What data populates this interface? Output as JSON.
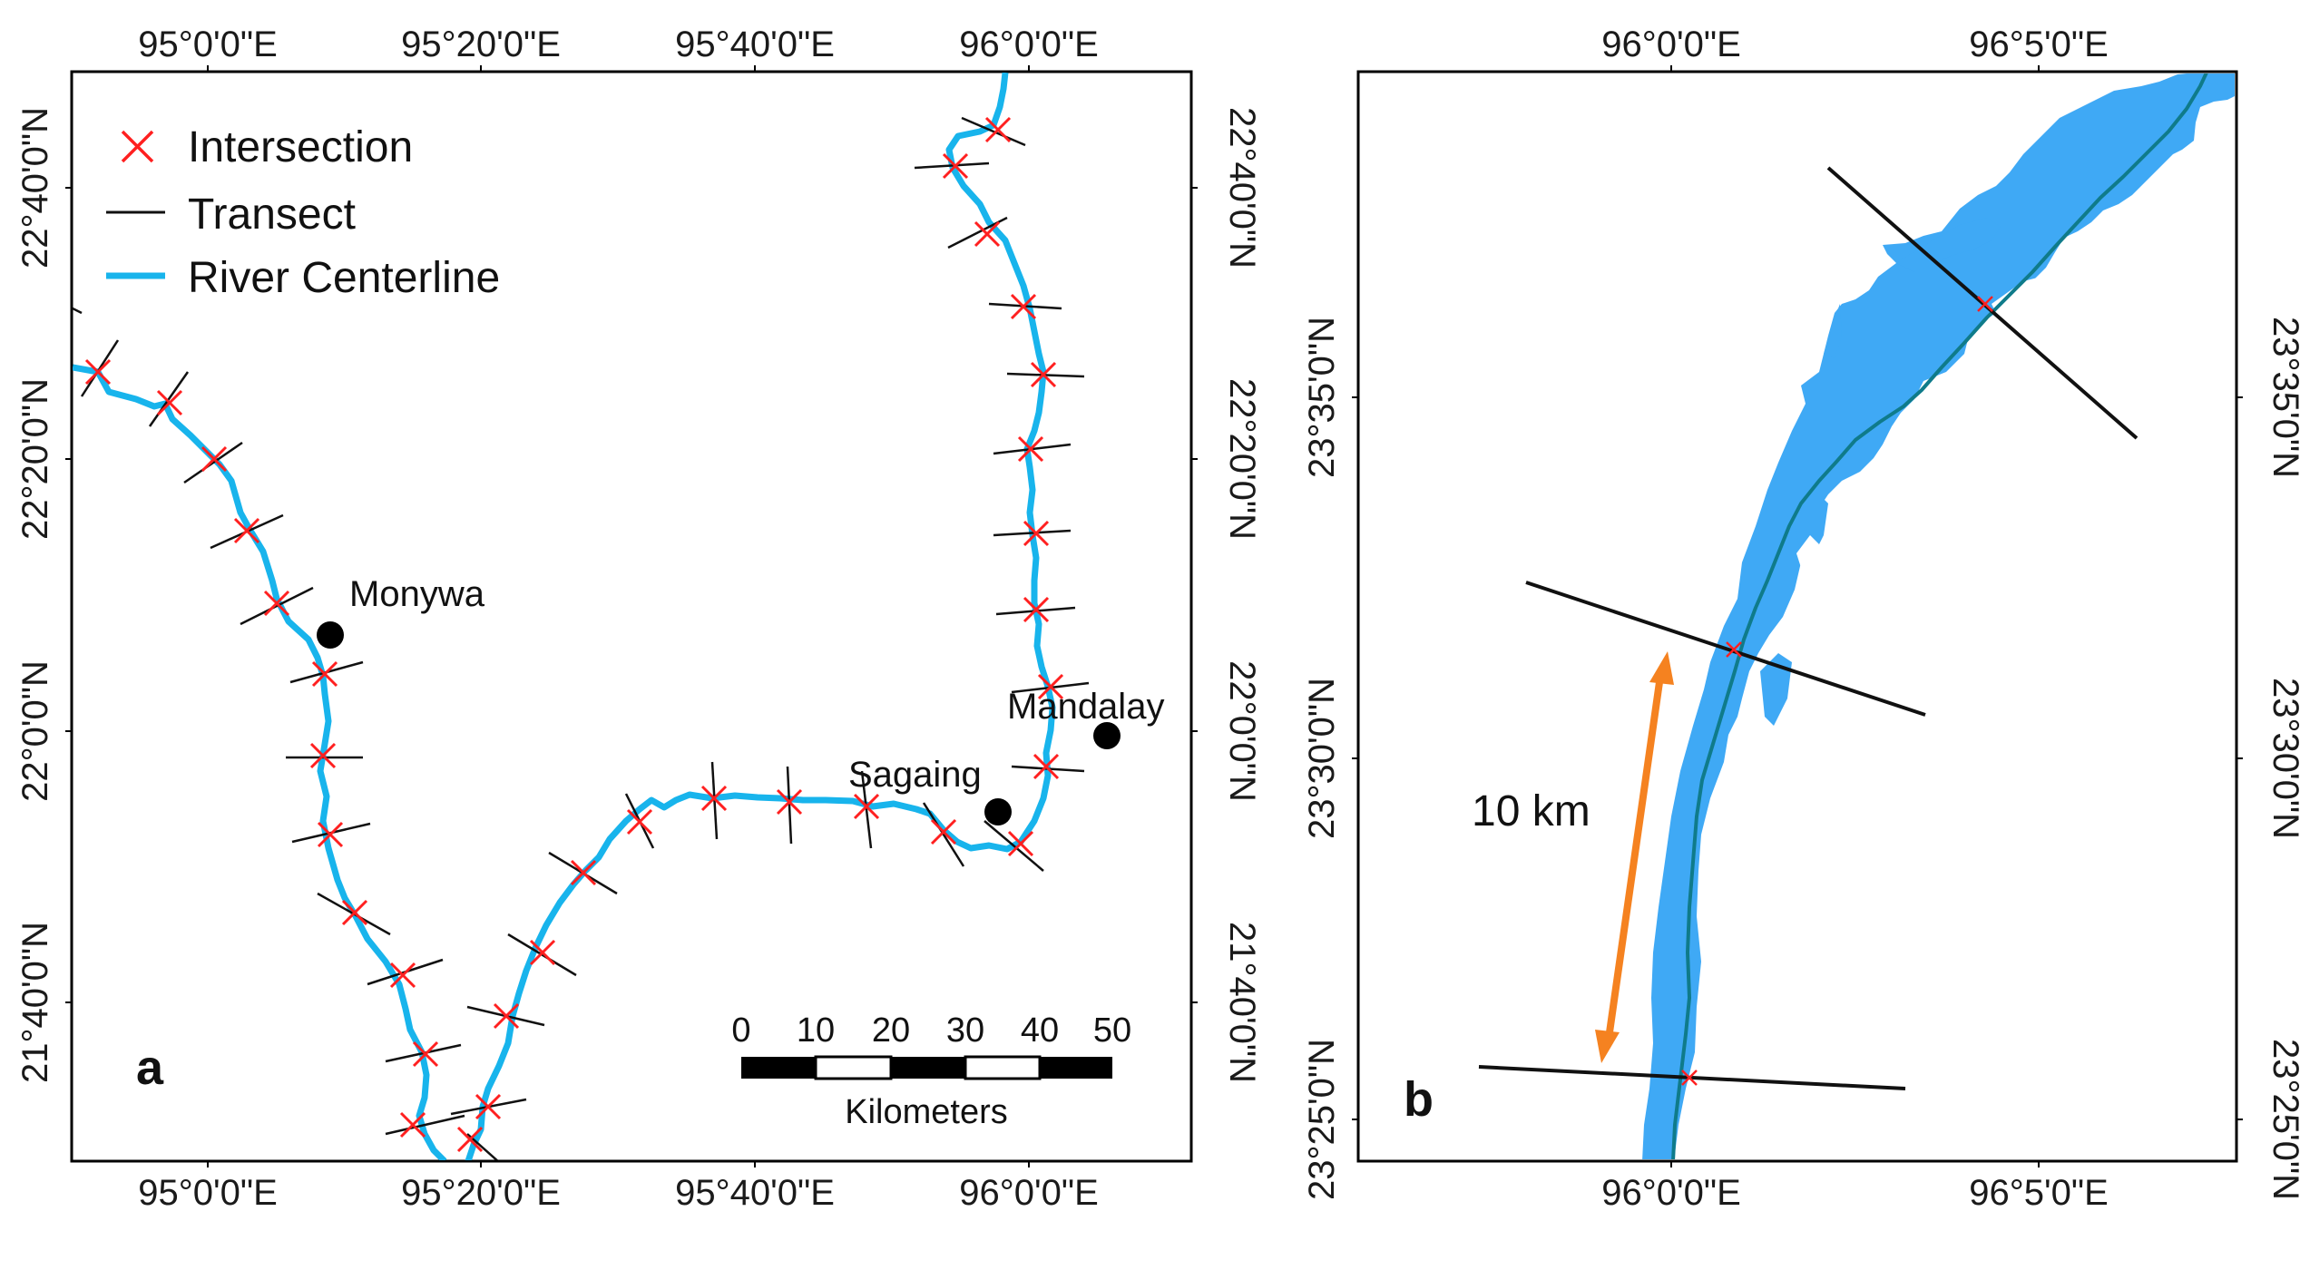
{
  "panel_a": {
    "letter": "a",
    "top_ticks": [
      "95°0'0\"E",
      "95°20'0\"E",
      "95°40'0\"E",
      "96°0'0\"E"
    ],
    "bottom_ticks": [
      "95°0'0\"E",
      "95°20'0\"E",
      "95°40'0\"E",
      "96°0'0\"E"
    ],
    "left_ticks": [
      "22°40'0\"N",
      "22°20'0\"N",
      "22°0'0\"N",
      "21°40'0\"N"
    ],
    "right_ticks": [
      "22°40'0\"N",
      "22°20'0\"N",
      "22°0'0\"N",
      "21°40'0\"N"
    ],
    "legend": {
      "intersection": "Intersection",
      "transect": "Transect",
      "centerline": "River Centerline"
    },
    "cities": {
      "monywa": "Monywa",
      "mandalay": "Mandalay",
      "sagaing": "Sagaing"
    },
    "scale_bar": {
      "labels": [
        "0",
        "10",
        "20",
        "30",
        "40",
        "50"
      ],
      "unit": "Kilometers"
    }
  },
  "panel_b": {
    "letter": "b",
    "top_ticks": [
      "96°0'0\"E",
      "96°5'0\"E"
    ],
    "bottom_ticks": [
      "96°0'0\"E",
      "96°5'0\"E"
    ],
    "left_ticks": [
      "23°35'0\"N",
      "23°30'0\"N",
      "23°25'0\"N"
    ],
    "right_ticks": [
      "23°35'0\"N",
      "23°30'0\"N",
      "23°25'0\"N"
    ],
    "distance_label": "10 km"
  },
  "colors": {
    "centerline": "#18b4ec",
    "river_fill": "#3fa9f5",
    "centerline_b": "#0f7b8a",
    "intersection": "#ff2020",
    "transect": "#111111",
    "distance_arrow": "#f58220"
  }
}
